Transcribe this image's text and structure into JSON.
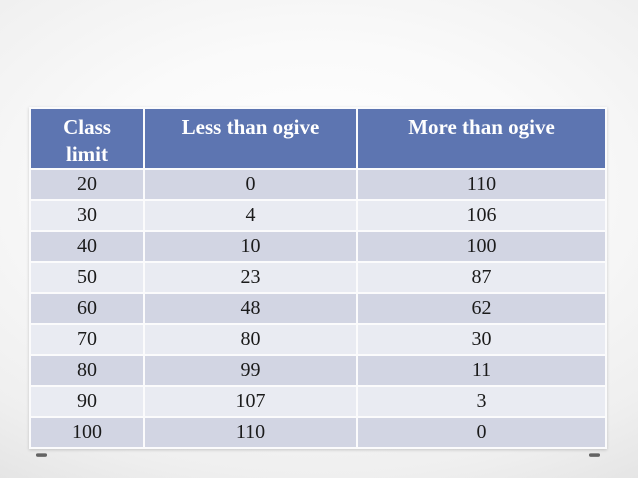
{
  "slide": {
    "table": {
      "headers": [
        "Class\nlimit",
        "Less than ogive",
        "More than ogive"
      ],
      "rows": [
        [
          "20",
          "0",
          "110"
        ],
        [
          "30",
          "4",
          "106"
        ],
        [
          "40",
          "10",
          "100"
        ],
        [
          "50",
          "23",
          "87"
        ],
        [
          "60",
          "48",
          "62"
        ],
        [
          "70",
          "80",
          "30"
        ],
        [
          "80",
          "99",
          "11"
        ],
        [
          "90",
          "107",
          "3"
        ],
        [
          "100",
          "110",
          "0"
        ]
      ]
    },
    "colors": {
      "header_bg": "#5d75b1",
      "header_text": "#ffffff",
      "row_odd_bg": "#d2d5e3",
      "row_even_bg": "#e9ebf2",
      "gridline": "#fbfbfc",
      "body_text": "#1b1b1b"
    },
    "chart_data": {
      "type": "table",
      "categories": [
        20,
        30,
        40,
        50,
        60,
        70,
        80,
        90,
        100
      ],
      "series": [
        {
          "name": "Less than ogive",
          "values": [
            0,
            4,
            10,
            23,
            48,
            80,
            99,
            107,
            110
          ]
        },
        {
          "name": "More than ogive",
          "values": [
            110,
            106,
            100,
            87,
            62,
            30,
            11,
            3,
            0
          ]
        }
      ],
      "title": "",
      "xlabel": "Class limit",
      "ylabel": ""
    }
  }
}
